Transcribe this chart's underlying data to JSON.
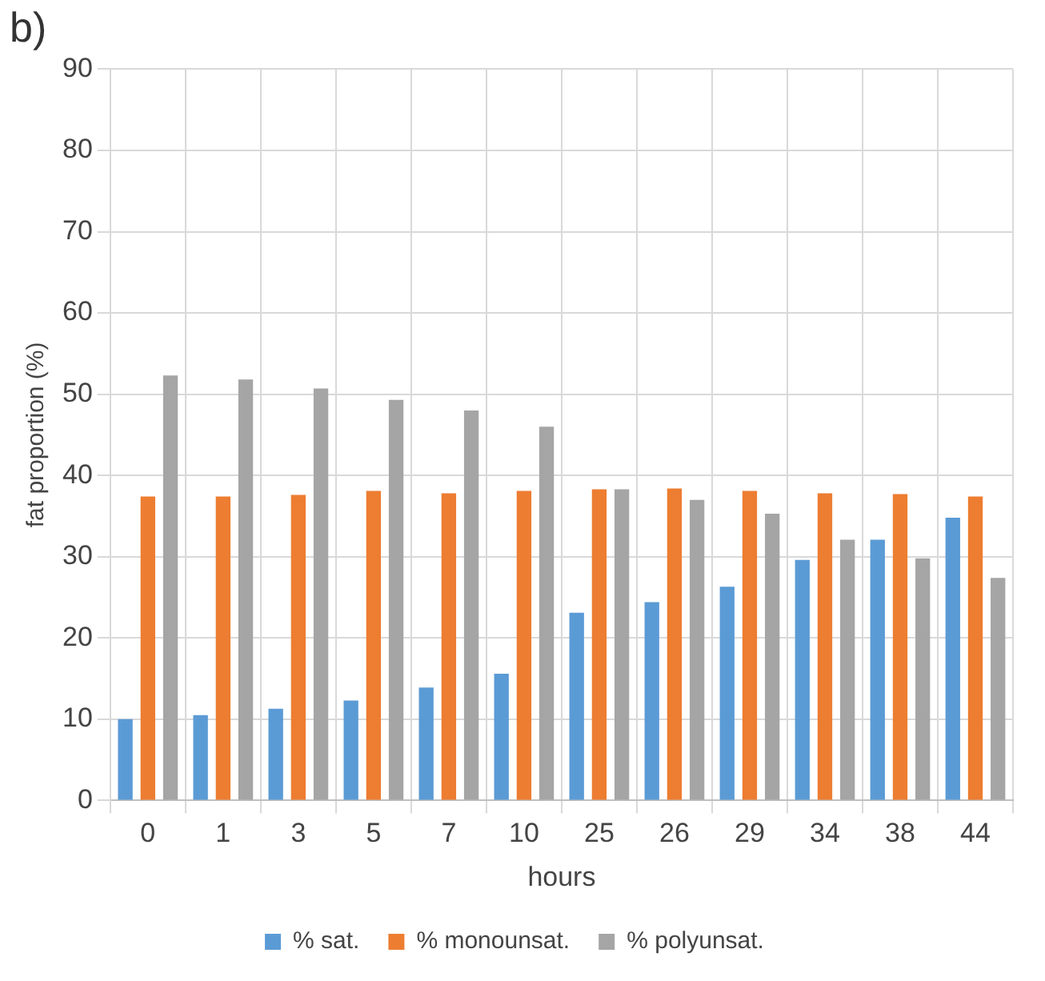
{
  "chart_data": {
    "type": "bar",
    "xlabel": "hours",
    "ylabel": "fat proportion (%)",
    "annotations": [
      "b)"
    ],
    "categories": [
      "0",
      "1",
      "3",
      "5",
      "7",
      "10",
      "25",
      "26",
      "29",
      "34",
      "38",
      "44"
    ],
    "series": [
      {
        "name": "% sat.",
        "color": "#5b9bd5",
        "values": [
          10.0,
          10.5,
          11.3,
          12.3,
          13.9,
          15.6,
          23.1,
          24.4,
          26.3,
          29.6,
          32.1,
          34.8
        ]
      },
      {
        "name": "% monounsat.",
        "color": "#ed7d31",
        "values": [
          37.4,
          37.4,
          37.6,
          38.1,
          37.8,
          38.1,
          38.3,
          38.4,
          38.1,
          37.8,
          37.7,
          37.4
        ]
      },
      {
        "name": "% polyunsat.",
        "color": "#a5a5a5",
        "values": [
          52.3,
          51.8,
          50.7,
          49.3,
          48.0,
          46.0,
          38.3,
          37.0,
          35.3,
          32.1,
          29.8,
          27.4
        ]
      }
    ],
    "ylim": [
      0,
      90
    ],
    "yticks": [
      0,
      10,
      20,
      30,
      40,
      50,
      60,
      70,
      80,
      90
    ],
    "grid": true,
    "legend": "bottom"
  }
}
